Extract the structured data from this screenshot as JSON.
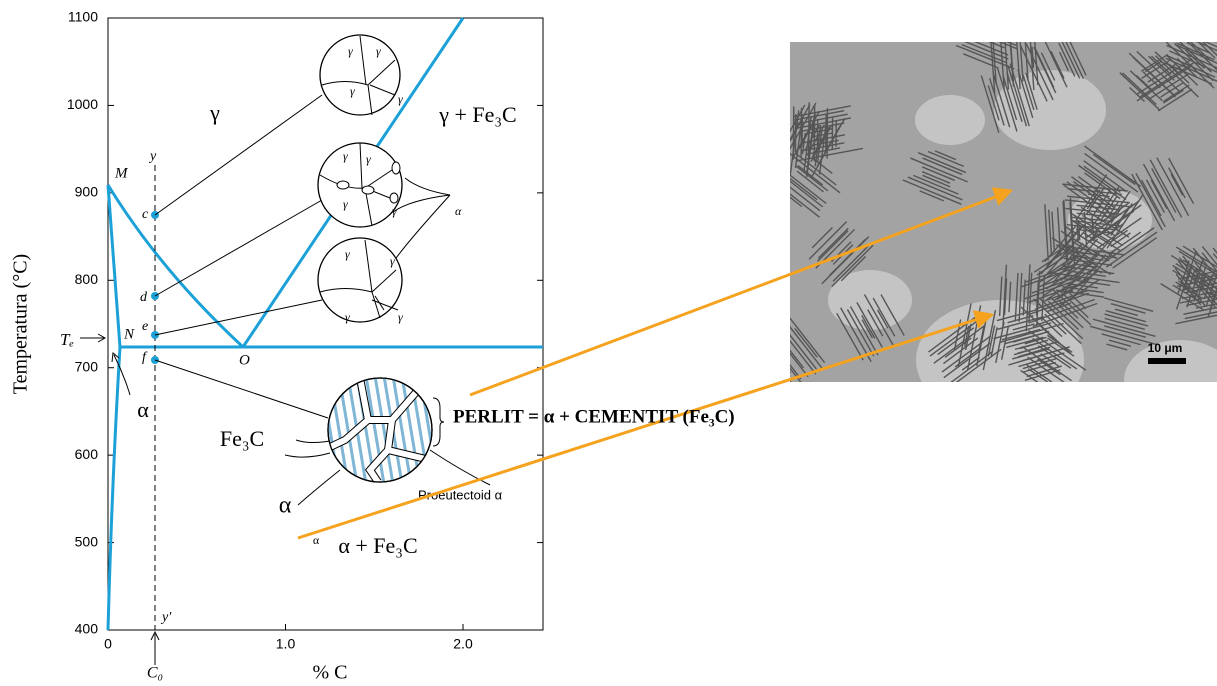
{
  "axes": {
    "y_label": "Temperatura (°C)",
    "x_label": "% C",
    "y_ticks": [
      "1100",
      "1000",
      "900",
      "800",
      "700",
      "600",
      "500",
      "400"
    ],
    "x_ticks": [
      "0",
      "1.0",
      "2.0"
    ],
    "composition_marker": "C₀"
  },
  "labels": {
    "M": "M",
    "N": "N",
    "O": "O",
    "Te": "Tₑ",
    "y_top": "y",
    "y_bottom": "y′",
    "points": [
      "c",
      "d",
      "e",
      "f"
    ]
  },
  "phases": {
    "gamma": "γ",
    "gamma_fe3c": "γ + Fe₃C",
    "alpha": "α",
    "fe3c": "Fe₃C",
    "alpha_fe3c": "α + Fe₃C",
    "alpha_small": "α",
    "alpha_pointer": "α"
  },
  "microstructures": {
    "gamma_grain": "γ",
    "alpha_grain": "α",
    "proeutectoid": "Proeutectoid α"
  },
  "pearlite": "PERLIT = α + CEMENTIT (Fe₃C)",
  "micrograph": {
    "scale_bar": "10 μm"
  }
}
